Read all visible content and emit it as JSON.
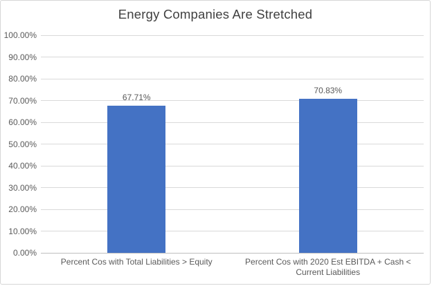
{
  "chart_data": {
    "type": "bar",
    "title": "Energy Companies Are Stretched",
    "categories": [
      "Percent Cos with Total Liabilities > Equity",
      "Percent Cos with 2020 Est EBITDA + Cash < Current Liabilities"
    ],
    "values": [
      67.71,
      70.83
    ],
    "data_labels": [
      "67.71%",
      "70.83%"
    ],
    "xlabel": "",
    "ylabel": "",
    "ylim": [
      0,
      100
    ],
    "ytick_step": 10,
    "ytick_labels": [
      "0.00%",
      "10.00%",
      "20.00%",
      "30.00%",
      "40.00%",
      "50.00%",
      "60.00%",
      "70.00%",
      "80.00%",
      "90.00%",
      "100.00%"
    ],
    "grid": true,
    "legend": false,
    "colors": {
      "bar": "#4472C4",
      "gridline": "#D9D9D9",
      "axis_line": "#BFBFBF",
      "tick_text": "#595959",
      "label_text": "#595959",
      "title_text": "#404040",
      "background": "#FFFFFF",
      "border": "#D6D6D6"
    }
  }
}
